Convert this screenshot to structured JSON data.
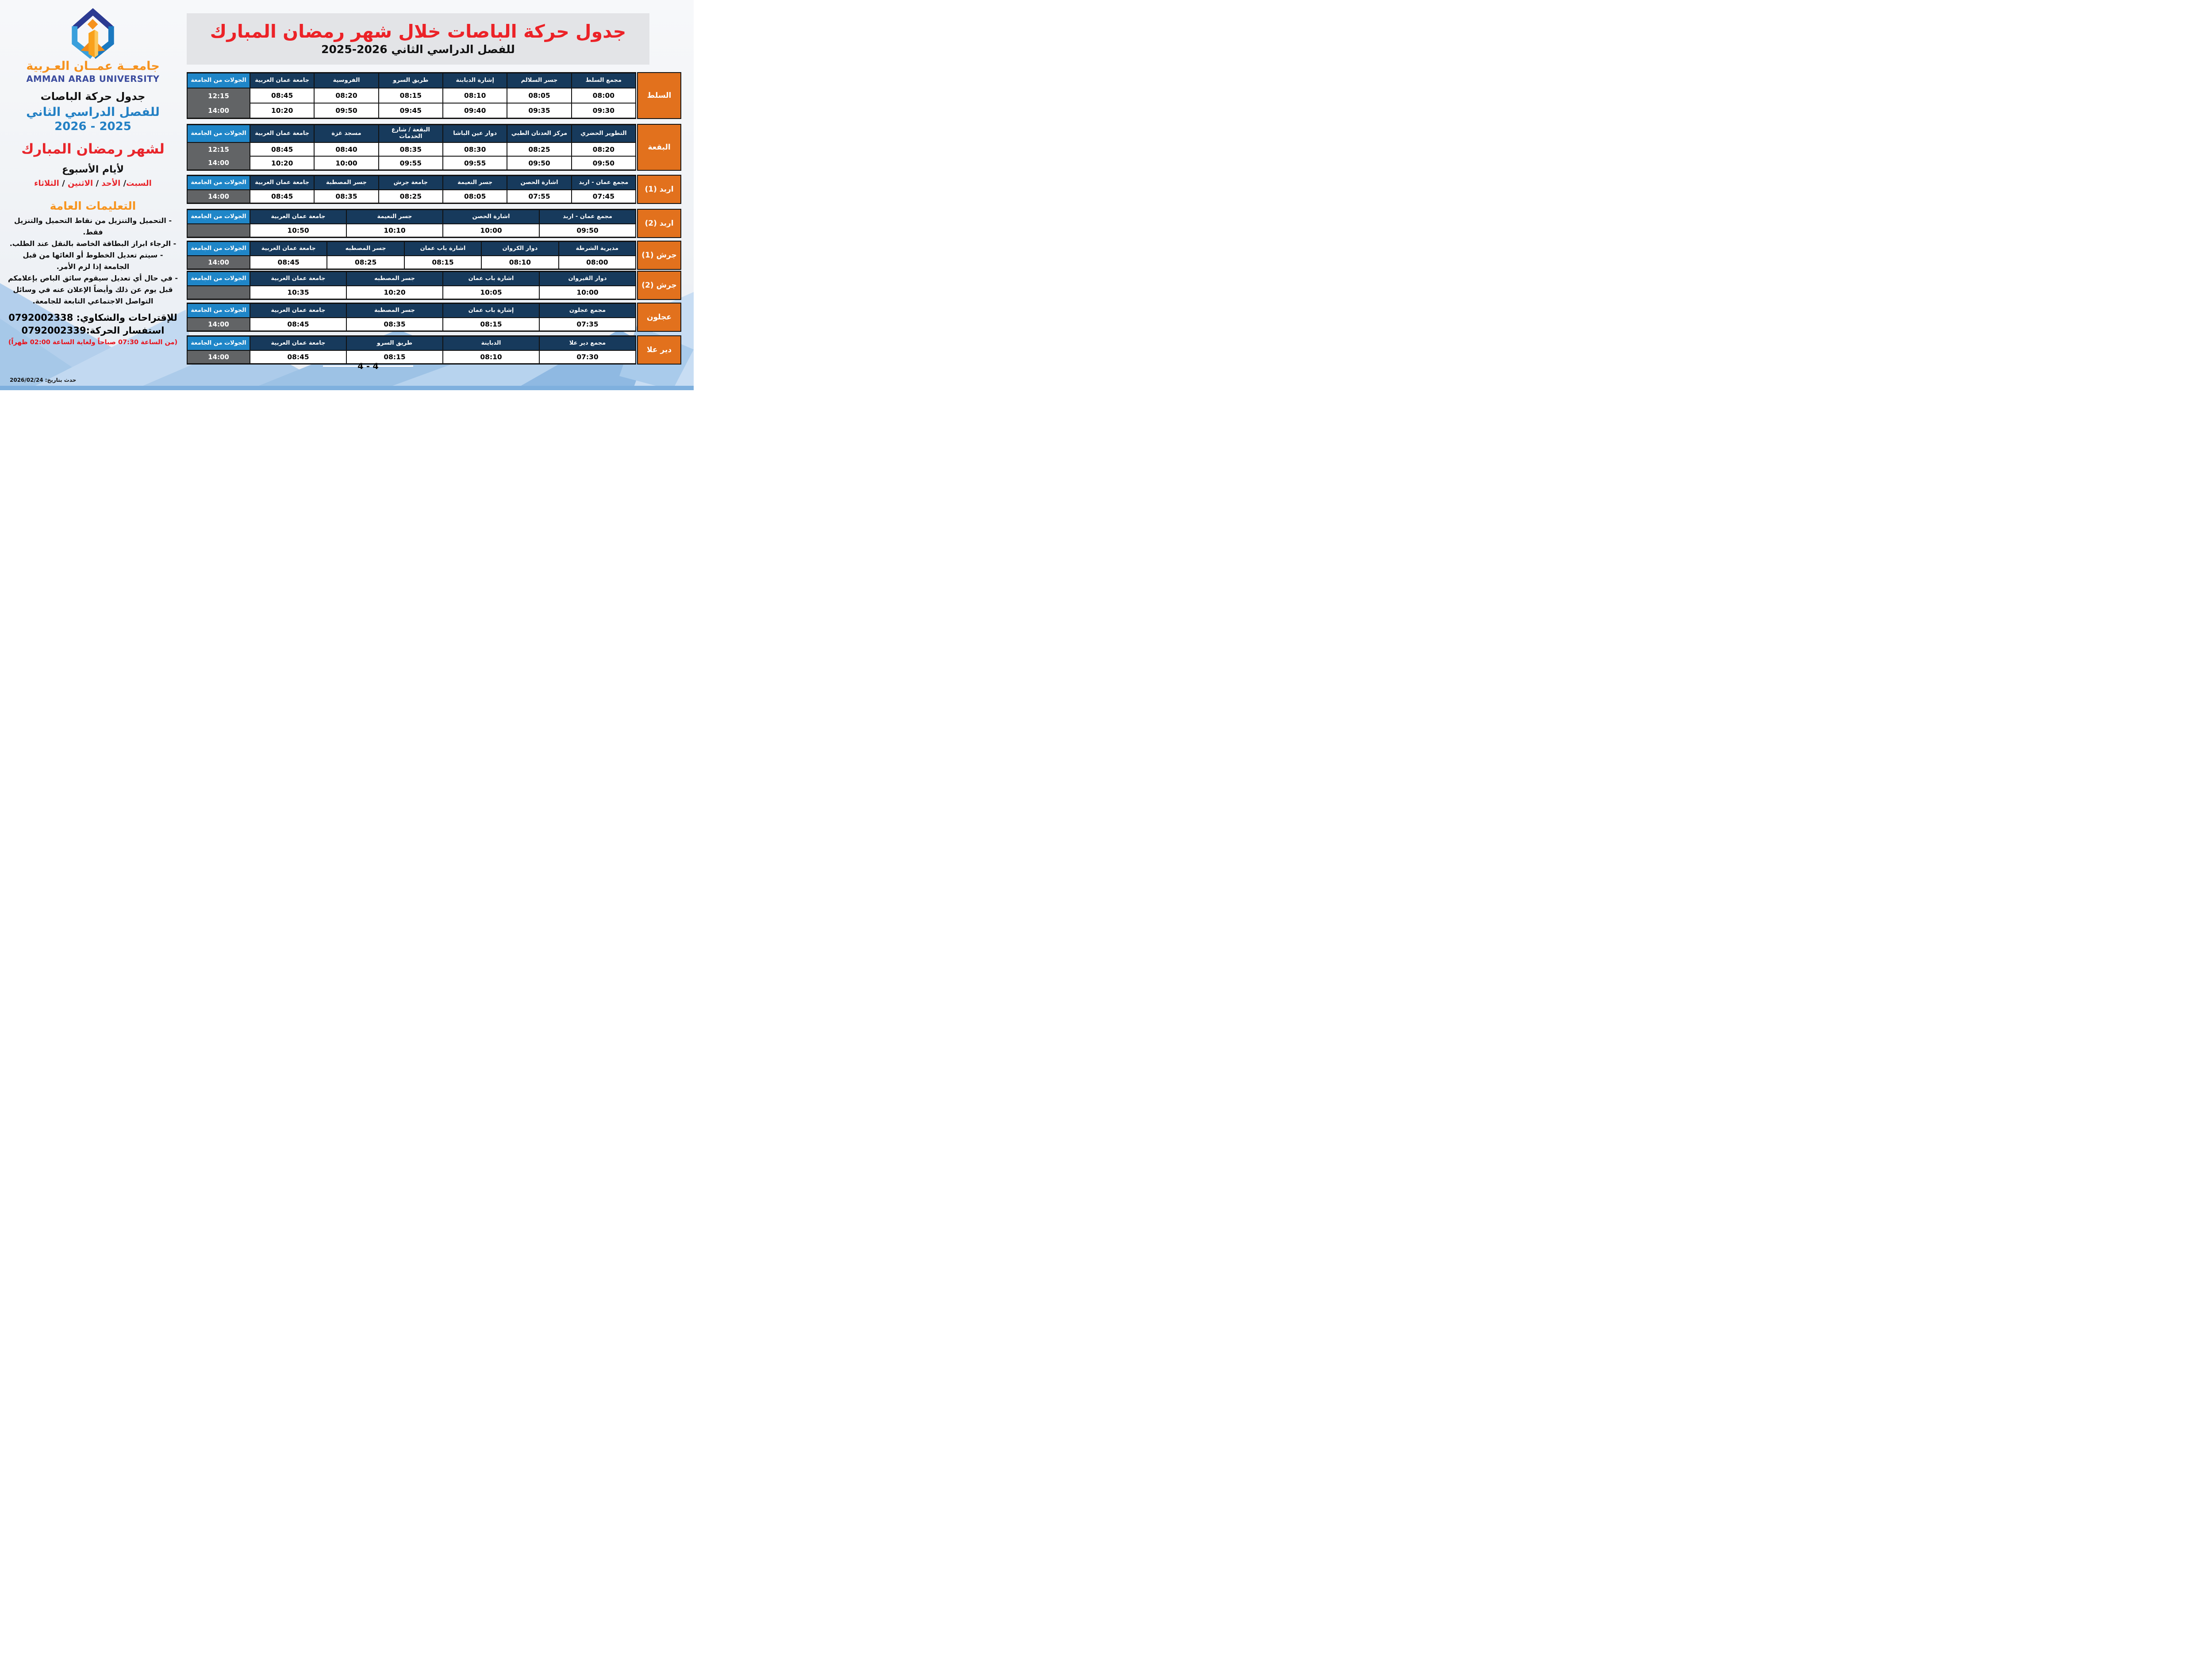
{
  "header": {
    "title": "جدول حركة الباصات خلال شهر رمضان المبارك",
    "subtitle": "للفصل الدراسي الثاني 2026-2025"
  },
  "sidebar": {
    "university_ar": "جامعــة عمــان العـربية",
    "university_en": "AMMAN ARAB UNIVERSITY",
    "schedule_title": "جدول حركة الباصات",
    "semester": "للفصل الدراسي الثاني",
    "years": "2025 - 2026",
    "ramadan": "لشهر رمضان  المبارك",
    "week_days_title": "لأيام الأسبوع",
    "days": [
      "السبت",
      "الأحد",
      "الاثنين",
      "الثلاثاء"
    ],
    "separator": "/",
    "instructions_title": "التعليمات العامة",
    "instructions": [
      "- التحميل والتنزيل من نقاط التحميل والتنزيل فقط.",
      "- الرجاء ابراز البطاقة الخاصة بالنقل عند الطلب.",
      "- سيتم تعديل الخطوط أو الغائها من قبل",
      "الجامعة إذا لزم الأمر.",
      "- في حال أي تعديل سيقوم سائق الباص بإعلامكم",
      "قبل يوم عن ذلك وأيضاً الإعلان عنه في وسائل",
      "التواصل الاجتماعي التابعة للجامعة."
    ],
    "complaints_phone": "للإقتراحات والشكاوي: 0792002338",
    "inquiry_phone": "استفسار الحركة:0792002339",
    "hours_note": "(من الساعة 07:30 صباحاً ولغاية الساعة 02:00 ظهراً)",
    "updated": "حدث بتاريخ: 2026/02/24"
  },
  "tours_header": "الجولات من الجامعة",
  "page_number": "4 - 4",
  "colors": {
    "navy_header": "#173a5c",
    "tours_blue": "#1f86c8",
    "tours_gray": "#626466",
    "label_orange": "#e2711d",
    "title_red": "#ec2227",
    "sidebar_blue": "#2380c4",
    "sidebar_orange": "#f7941d"
  },
  "tables": [
    {
      "label": "السلط",
      "stops": [
        "مجمع السلط",
        "جسر السلالم",
        "إشارة الدبابنة",
        "طريق السرو",
        "الفروسية",
        "جامعة عمان العربية"
      ],
      "rows": [
        [
          "08:00",
          "08:05",
          "08:10",
          "08:15",
          "08:20",
          "08:45"
        ],
        [
          "09:30",
          "09:35",
          "09:40",
          "09:45",
          "09:50",
          "10:20"
        ]
      ],
      "tours": [
        "12:15",
        "14:00"
      ]
    },
    {
      "label": "البقعة",
      "stops": [
        "التطوير الحضري",
        "مركز العدنان الطبي",
        "دوار عين الباشا",
        "البقعة / شارع الخدمات",
        "مسجد غزة",
        "جامعة عمان العربية"
      ],
      "rows": [
        [
          "08:20",
          "08:25",
          "08:30",
          "08:35",
          "08:40",
          "08:45"
        ],
        [
          "09:50",
          "09:50",
          "09:55",
          "09:55",
          "10:00",
          "10:20"
        ]
      ],
      "tours": [
        "12:15",
        "14:00"
      ]
    },
    {
      "label": "اربد (1)",
      "stops": [
        "مجمع عمان - اربد",
        "اشارة الحصن",
        "جسر النعيمة",
        "جامعة جرش",
        "جسر  المصطبة",
        "جامعة عمان العربية"
      ],
      "rows": [
        [
          "07:45",
          "07:55",
          "08:05",
          "08:25",
          "08:35",
          "08:45"
        ]
      ],
      "tours": [
        "14:00"
      ]
    },
    {
      "label": "اربد (2)",
      "stops": [
        "مجمع عمان - اربد",
        "اشارة الحصن",
        "جسر النعيمة",
        "جامعة عمان العربية"
      ],
      "rows": [
        [
          "09:50",
          "10:00",
          "10:10",
          "10:50"
        ]
      ],
      "tours": []
    },
    {
      "label": "جرش (1)",
      "stops": [
        "مديرية الشرطة",
        "دوار الكروان",
        "اشارة باب عمان",
        "جسر المصطبه",
        "جامعة عمان العربية"
      ],
      "rows": [
        [
          "08:00",
          "08:10",
          "08:15",
          "08:25",
          "08:45"
        ]
      ],
      "tours": [
        "14:00"
      ]
    },
    {
      "label": "جرش (2)",
      "stops": [
        "دوار القيروان",
        "اشارة باب عمان",
        "جسر المصطبه",
        "جامعة عمان العربية"
      ],
      "rows": [
        [
          "10:00",
          "10:05",
          "10:20",
          "10:35"
        ]
      ],
      "tours": []
    },
    {
      "label": "عجلون",
      "stops": [
        "مجمع عجلون",
        "إشارة باب عمان",
        "جسر  المصطبة",
        "جامعة عمان العربية"
      ],
      "rows": [
        [
          "07:35",
          "08:15",
          "08:35",
          "08:45"
        ]
      ],
      "tours": [
        "14:00"
      ]
    },
    {
      "label": "دير علا",
      "stops": [
        "مجمع دير علا",
        "الدباينة",
        "طريق السرو",
        "جامعة عمان العربية"
      ],
      "rows": [
        [
          "07:30",
          "08:10",
          "08:15",
          "08:45"
        ]
      ],
      "tours": [
        "14:00"
      ]
    }
  ]
}
